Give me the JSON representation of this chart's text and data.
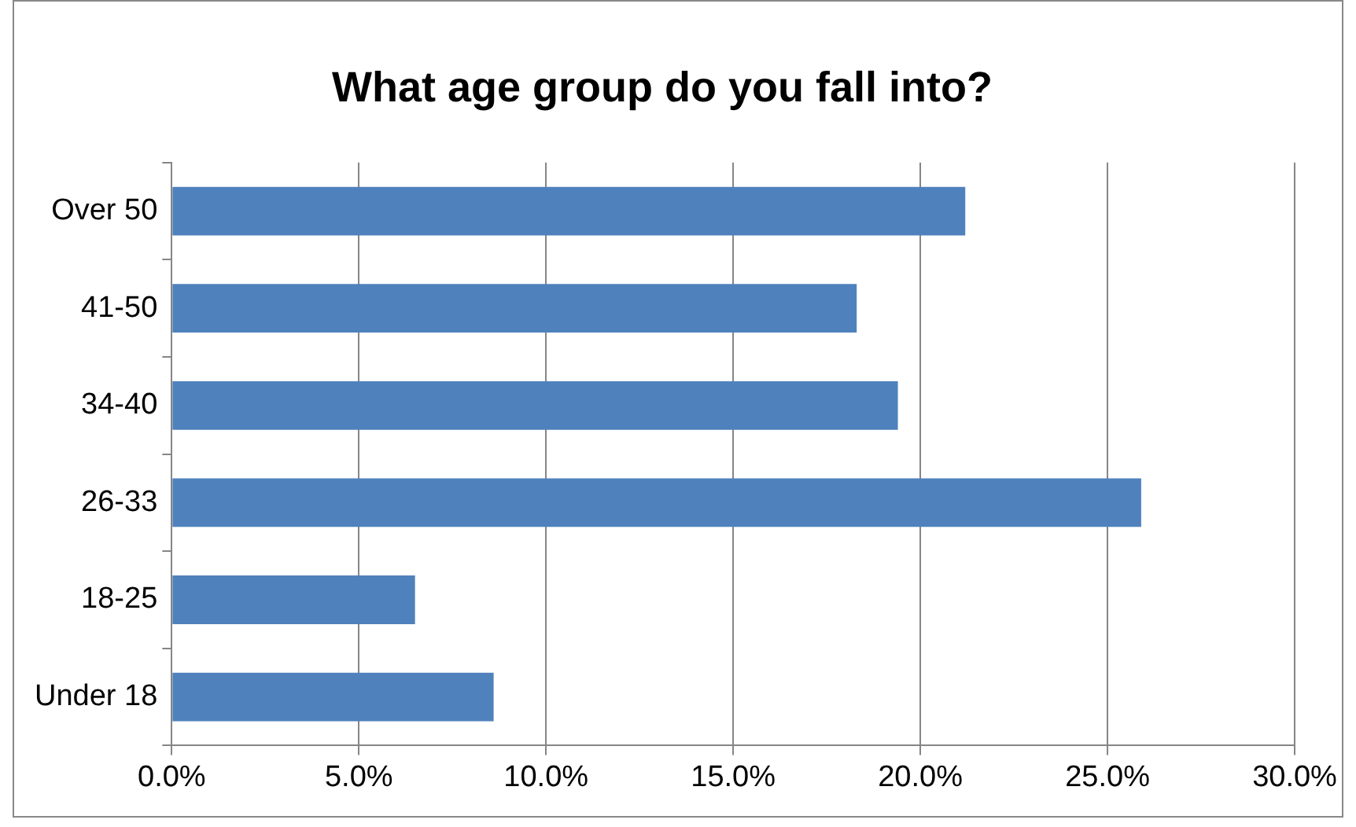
{
  "chart_data": {
    "type": "bar",
    "orientation": "horizontal",
    "title": "What age group do you fall into?",
    "categories": [
      "Over 50",
      "41-50",
      "34-40",
      "26-33",
      "18-25",
      "Under 18"
    ],
    "values": [
      21.2,
      18.3,
      19.4,
      25.9,
      6.5,
      8.6
    ],
    "color": "#4f81bd",
    "xlim": [
      0,
      30
    ],
    "xticks": [
      {
        "value": 0,
        "label": "0.0%"
      },
      {
        "value": 5,
        "label": "5.0%"
      },
      {
        "value": 10,
        "label": "10.0%"
      },
      {
        "value": 15,
        "label": "15.0%"
      },
      {
        "value": 20,
        "label": "20.0%"
      },
      {
        "value": 25,
        "label": "25.0%"
      },
      {
        "value": 30,
        "label": "30.0%"
      }
    ],
    "grid": "x",
    "legend": false
  }
}
